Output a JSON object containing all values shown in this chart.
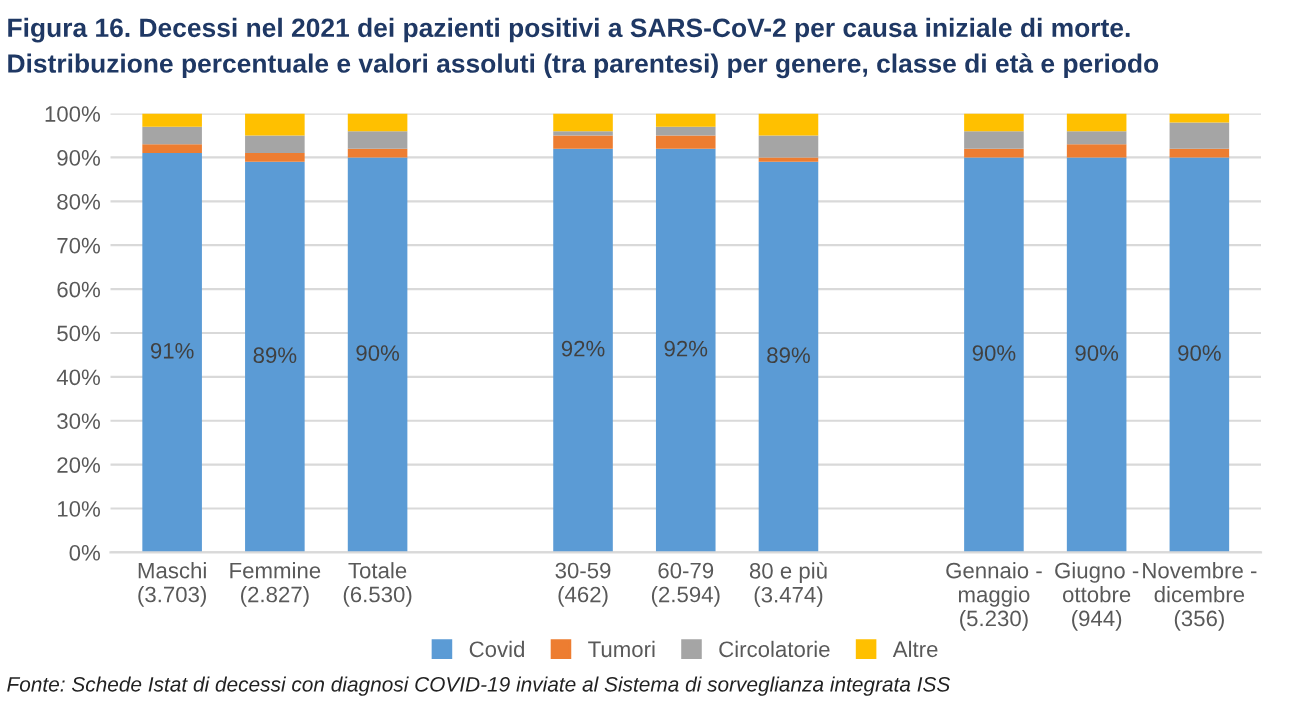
{
  "chart_data": {
    "type": "bar",
    "stacked": true,
    "title": "Figura 16. Decessi nel 2021 dei pazienti positivi a SARS-CoV-2 per causa iniziale di morte.",
    "subtitle": "Distribuzione percentuale e valori assoluti (tra parentesi) per genere, classe di età e periodo",
    "categories": [
      "Maschi\n(3.703)",
      "Femmine\n(2.827)",
      "Totale\n(6.530)",
      null,
      "30-59\n(462)",
      "60-79\n(2.594)",
      "80 e più\n(3.474)",
      null,
      "Gennaio -\nmaggio\n(5.230)",
      "Giugno -\nottobre\n(944)",
      "Novembre -\ndicembre\n(356)"
    ],
    "series": [
      {
        "name": "Covid",
        "color": "#5b9bd5",
        "values": [
          91,
          89,
          90,
          null,
          92,
          92,
          89,
          null,
          90,
          90,
          90
        ],
        "value_labels": [
          "91%",
          "89%",
          "90%",
          null,
          "92%",
          "92%",
          "89%",
          null,
          "90%",
          "90%",
          "90%"
        ]
      },
      {
        "name": "Tumori",
        "color": "#ed7d31",
        "values": [
          2,
          2,
          2,
          null,
          3,
          3,
          1,
          null,
          2,
          3,
          2
        ]
      },
      {
        "name": "Circolatorie",
        "color": "#a5a5a5",
        "values": [
          4,
          4,
          4,
          null,
          1,
          2,
          5,
          null,
          4,
          3,
          6
        ]
      },
      {
        "name": "Altre",
        "color": "#ffc000",
        "values": [
          3,
          5,
          4,
          null,
          4,
          3,
          5,
          null,
          4,
          4,
          2
        ]
      }
    ],
    "ylim": [
      0,
      100
    ],
    "yticks": [
      {
        "value": 0,
        "label": "0%"
      },
      {
        "value": 10,
        "label": "10%"
      },
      {
        "value": 20,
        "label": "20%"
      },
      {
        "value": 30,
        "label": "30%"
      },
      {
        "value": 40,
        "label": "40%"
      },
      {
        "value": 50,
        "label": "50%"
      },
      {
        "value": 60,
        "label": "60%"
      },
      {
        "value": 70,
        "label": "70%"
      },
      {
        "value": 80,
        "label": "80%"
      },
      {
        "value": 90,
        "label": "90%"
      },
      {
        "value": 100,
        "label": "100%"
      }
    ],
    "grid": "y",
    "legend": "bottom",
    "annotations": [
      "Fonte: Schede Istat di decessi con diagnosi COVID-19 inviate al Sistema di sorveglianza integrata ISS"
    ]
  }
}
